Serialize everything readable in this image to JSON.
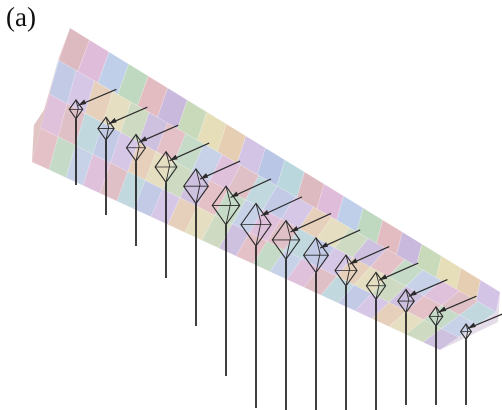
{
  "figure": {
    "panel_label": "(a)",
    "cameras": {
      "count": 14,
      "marker_color": "#2a2a2a",
      "vertical_line_color": "#111111"
    },
    "volume": {
      "tint_palette": [
        "#d9a3a3",
        "#b7a3d6",
        "#9fb7e3",
        "#a7d7a7",
        "#e7c48d",
        "#dca6cf",
        "#b7d99c",
        "#9fd3d6",
        "#e3a6a6",
        "#c8b2e3",
        "#a9c7ea",
        "#e6e09a"
      ]
    }
  }
}
